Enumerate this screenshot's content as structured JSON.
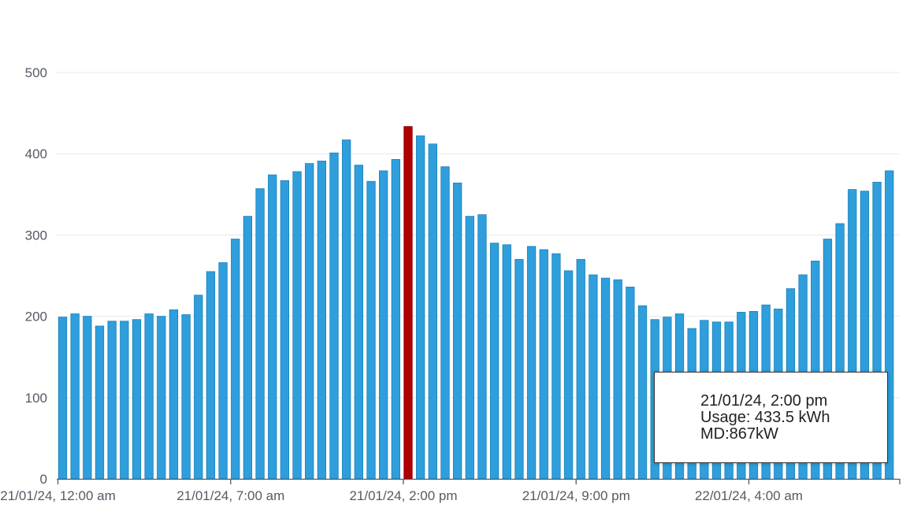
{
  "chart_data": {
    "type": "bar",
    "ylim": [
      0,
      500
    ],
    "yticks": [
      0,
      100,
      200,
      300,
      400,
      500
    ],
    "grid": true,
    "xtick_labels": [
      {
        "index": 0,
        "label": "21/01/24, 12:00 am"
      },
      {
        "index": 14,
        "label": "21/01/24, 7:00 am"
      },
      {
        "index": 28,
        "label": "21/01/24, 2:00 pm"
      },
      {
        "index": 42,
        "label": "21/01/24, 9:00 pm"
      },
      {
        "index": 56,
        "label": "22/01/24, 4:00 am"
      }
    ],
    "highlight_index": 28,
    "colors": {
      "bar": "#2e9fdc",
      "bar_edge": "#1a7fb8",
      "highlight": "#b00000",
      "grid": "#e6e8f0",
      "axis": "#555a63"
    },
    "values": [
      199,
      203,
      200,
      188,
      194,
      194,
      196,
      203,
      200,
      208,
      202,
      226,
      255,
      266,
      295,
      323,
      357,
      374,
      367,
      378,
      388,
      391,
      401,
      417,
      386,
      366,
      379,
      393,
      433.5,
      422,
      412,
      384,
      364,
      323,
      325,
      290,
      288,
      270,
      286,
      282,
      277,
      256,
      270,
      251,
      247,
      245,
      236,
      213,
      196,
      199,
      203,
      185,
      195,
      193,
      193,
      205,
      206,
      214,
      209,
      234,
      251,
      268,
      295,
      314,
      356,
      354,
      365,
      379
    ]
  },
  "tooltip": {
    "date": "21/01/24, 2:00 pm",
    "usage": "Usage: 433.5 kWh",
    "md": "MD:867kW"
  }
}
